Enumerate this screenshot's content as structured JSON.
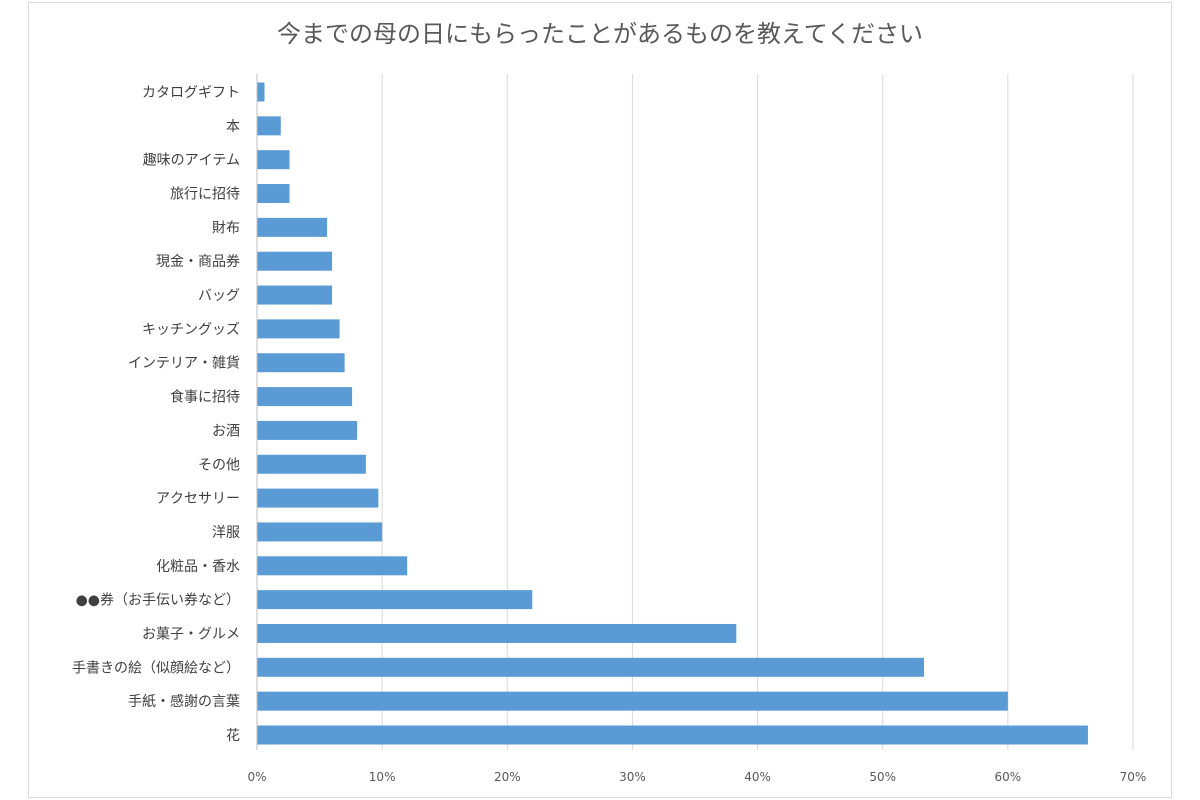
{
  "chart_data": {
    "type": "bar",
    "orientation": "horizontal",
    "title": "今までの母の日にもらったことがあるものを教えてください",
    "categories": [
      "カタログギフト",
      "本",
      "趣味のアイテム",
      "旅行に招待",
      "財布",
      "現金・商品券",
      "バッグ",
      "キッチングッズ",
      "インテリア・雑貨",
      "食事に招待",
      "お酒",
      "その他",
      "アクセサリー",
      "洋服",
      "化粧品・香水",
      "●●券（お手伝い券など）",
      "お菓子・グルメ",
      "手書きの絵（似顔絵など）",
      "手紙・感謝の言葉",
      "花"
    ],
    "values": [
      0.6,
      1.9,
      2.6,
      2.6,
      5.6,
      6.0,
      6.0,
      6.6,
      7.0,
      7.6,
      8.0,
      8.7,
      9.7,
      10.0,
      12.0,
      22.0,
      38.3,
      53.3,
      60.0,
      66.4
    ],
    "xlim": [
      0,
      70
    ],
    "xticks": [
      "0%",
      "10%",
      "20%",
      "30%",
      "40%",
      "50%",
      "60%",
      "70%"
    ],
    "bar_color": "#5b9bd5",
    "grid": true,
    "legend": "none"
  }
}
